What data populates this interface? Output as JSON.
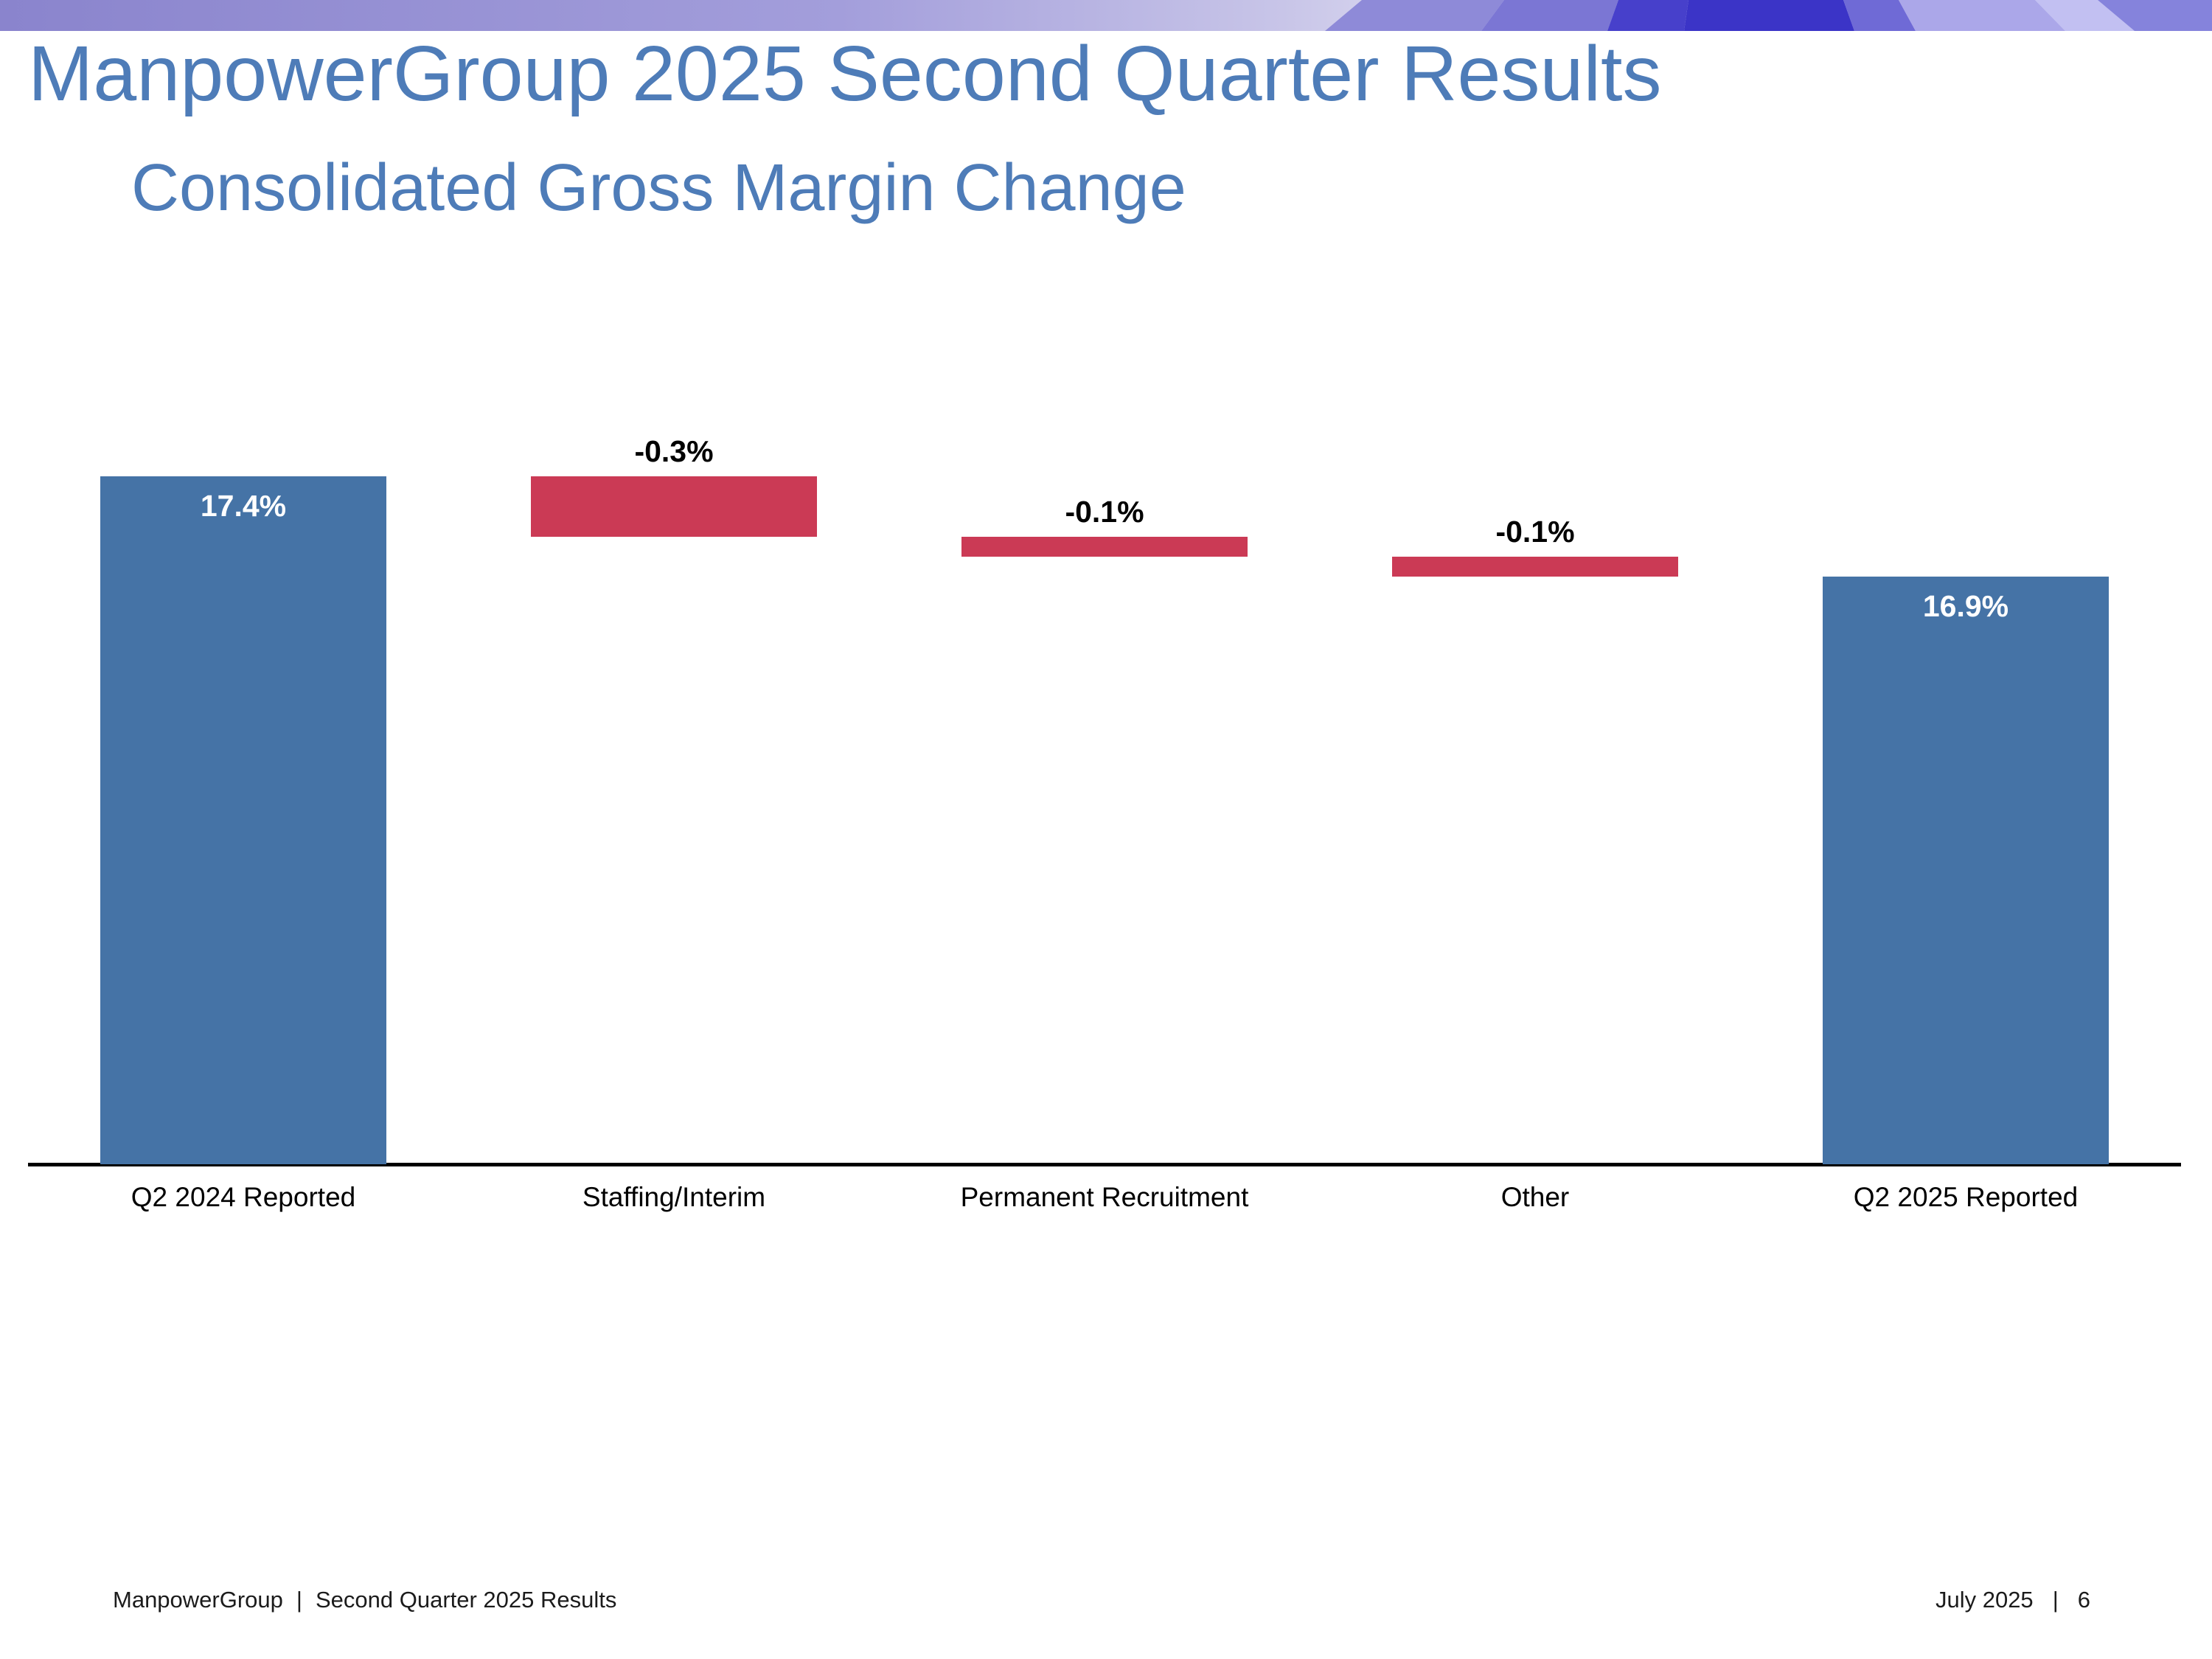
{
  "slide": {
    "title": "ManpowerGroup 2025 Second Quarter Results",
    "subtitle": "Consolidated Gross Margin Change"
  },
  "footer": {
    "left": {
      "brand": "ManpowerGroup",
      "separator": "|",
      "text": "Second Quarter 2025 Results"
    },
    "right": {
      "date": "July 2025",
      "separator": "|",
      "page": "6"
    }
  },
  "colors": {
    "title_blue": "#4E7CB8",
    "bar_blue": "#4573A6",
    "bar_red": "#CB3A55",
    "banner_purple_start": "#8A84CD",
    "banner_purple_light": "#D8D6EF",
    "banner_dark_blue": "#3B34C7",
    "axis_line": "#000000",
    "footer_text": "#1B1B1B"
  },
  "chart_data": {
    "type": "waterfall",
    "title": "Consolidated Gross Margin Change",
    "xlabel": "",
    "ylabel": "",
    "categories": [
      "Q2 2024 Reported",
      "Staffing/Interim",
      "Permanent Recruitment",
      "Other",
      "Q2 2025 Reported"
    ],
    "series": [
      {
        "name": "Consolidated Gross Margin",
        "bars": [
          {
            "category": "Q2 2024 Reported",
            "value": 17.4,
            "kind": "total",
            "label": "17.4%",
            "color": "#4573A6",
            "label_color": "#FFFFFF",
            "label_position": "inside-top"
          },
          {
            "category": "Staffing/Interim",
            "value": -0.3,
            "kind": "delta",
            "label": "-0.3%",
            "color": "#CB3A55",
            "label_color": "#000000",
            "label_position": "above"
          },
          {
            "category": "Permanent Recruitment",
            "value": -0.1,
            "kind": "delta",
            "label": "-0.1%",
            "color": "#CB3A55",
            "label_color": "#000000",
            "label_position": "above"
          },
          {
            "category": "Other",
            "value": -0.1,
            "kind": "delta",
            "label": "-0.1%",
            "color": "#CB3A55",
            "label_color": "#000000",
            "label_position": "above"
          },
          {
            "category": "Q2 2025 Reported",
            "value": 16.9,
            "kind": "total",
            "label": "16.9%",
            "color": "#4573A6",
            "label_color": "#FFFFFF",
            "label_position": "inside-top"
          }
        ]
      }
    ],
    "axis": {
      "ylim": [
        13.95,
        17.72
      ],
      "gridlines": false,
      "y_tick_labels_visible": false,
      "baseline_visible": true
    },
    "legend": "none"
  }
}
